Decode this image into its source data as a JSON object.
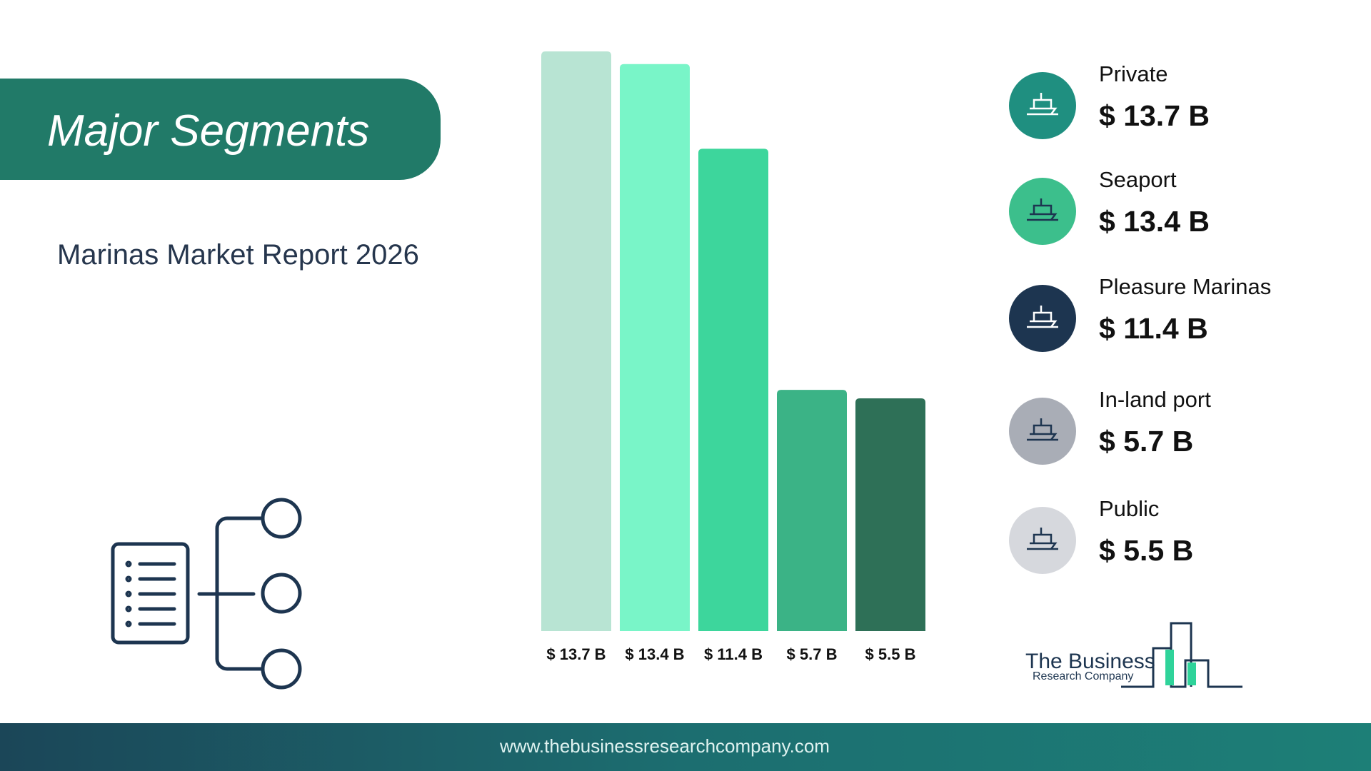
{
  "header": {
    "title": "Major Segments",
    "subtitle": "Marinas Market Report 2026"
  },
  "chart_data": {
    "type": "bar",
    "categories": [
      "Private",
      "Seaport",
      "Pleasure Marinas",
      "In-land port",
      "Public"
    ],
    "values": [
      13.7,
      13.4,
      11.4,
      5.7,
      5.5
    ],
    "value_labels": [
      "$ 13.7 B",
      "$ 13.4 B",
      "$ 11.4 B",
      "$ 5.7 B",
      "$ 5.5 B"
    ],
    "colors": [
      "#b8e4d3",
      "#79f5c8",
      "#3dd69c",
      "#3bb386",
      "#2e7057"
    ]
  },
  "logo": {
    "name": "The Business",
    "tagline": "Research Company"
  },
  "footer": {
    "url": "www.thebusinessresearchcompany.com"
  }
}
